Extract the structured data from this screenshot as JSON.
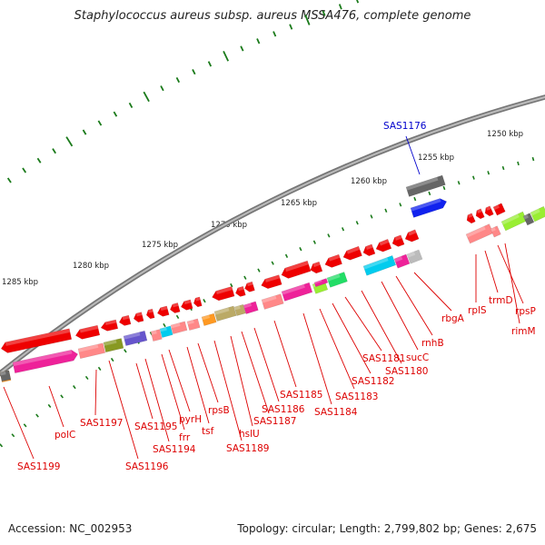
{
  "title": "Staphylococcus aureus subsp. aureus MSSA476, complete genome",
  "footer": {
    "accession": "Accession: NC_002953",
    "summary": "Topology: circular; Length: 2,799,802 bp; Genes: 2,675"
  },
  "colors": {
    "label_red": "#dd0000",
    "label_blue": "#0000cc",
    "tick_green": "#1a7a1a",
    "backbone": "#888888",
    "gene_red": "#ee0000",
    "gene_pink": "#ff8888",
    "gene_magenta": "#ee2299",
    "gene_olive": "#889922",
    "gene_purple": "#6655cc",
    "gene_cyan": "#00ccee",
    "gene_orange": "#ff9922",
    "gene_khaki": "#bbaa66",
    "gene_green": "#22dd66",
    "gene_lime": "#99ee33",
    "gene_grey": "#666666",
    "gene_lightgrey": "#bbbbbb",
    "gene_blue": "#1122ee"
  },
  "kbp_labels": [
    "1285 kbp",
    "1280 kbp",
    "1275 kbp",
    "1270 kbp",
    "1265 kbp",
    "1260 kbp",
    "1255 kbp",
    "1250 kbp"
  ],
  "gene_labels": [
    "SAS1176",
    "SAS1199",
    "polC",
    "SAS1197",
    "SAS1196",
    "SAS1195",
    "SAS1194",
    "frr",
    "pyrH",
    "tsf",
    "rpsB",
    "SAS1189",
    "hslU",
    "SAS1187",
    "SAS1186",
    "SAS1185",
    "SAS1184",
    "SAS1183",
    "SAS1182",
    "SAS1181",
    "SAS1180",
    "sucC",
    "rnhB",
    "rbgA",
    "rplS",
    "trmD",
    "rpsP",
    "rimM"
  ]
}
